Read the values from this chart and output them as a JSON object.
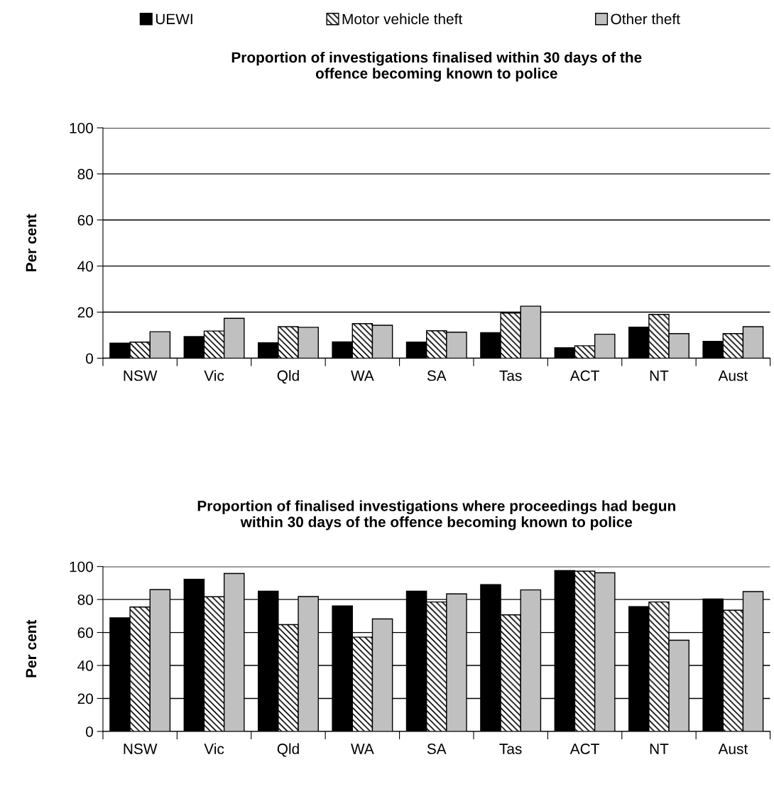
{
  "chart_data": [
    {
      "type": "bar",
      "title": "Proportion of investigations finalised within 30 days of the\noffence becoming known to police",
      "ylabel": "Per cent",
      "categories": [
        "NSW",
        "Vic",
        "Qld",
        "WA",
        "SA",
        "Tas",
        "ACT",
        "NT",
        "Aust"
      ],
      "series": [
        {
          "name": "UEWI",
          "color": "#000000",
          "values": [
            6.5,
            9.4,
            6.7,
            7.1,
            7.0,
            11.1,
            4.5,
            13.5,
            7.3
          ]
        },
        {
          "name": "Motor vehicle theft",
          "color": "#000000",
          "values": [
            7.0,
            11.8,
            13.7,
            15.0,
            11.9,
            19.6,
            5.4,
            19.0,
            10.7
          ]
        },
        {
          "name": "Other theft",
          "color": "#c0c0c0",
          "values": [
            11.5,
            17.3,
            13.4,
            14.3,
            11.3,
            22.6,
            10.4,
            10.7,
            13.7
          ]
        }
      ],
      "ylim": [
        0,
        100
      ],
      "yticks": [
        0,
        20,
        40,
        60,
        80,
        100
      ],
      "grid": "y",
      "legend": "top"
    },
    {
      "type": "bar",
      "title": "Proportion of finalised investigations where proceedings had begun\nwithin 30 days of the offence becoming known to police",
      "ylabel": "Per cent",
      "categories": [
        "NSW",
        "Vic",
        "Qld",
        "WA",
        "SA",
        "Tas",
        "ACT",
        "NT",
        "Aust"
      ],
      "series": [
        {
          "color": "#000000",
          "values": [
            68.9,
            92.3,
            85.0,
            76.1,
            85.0,
            89.0,
            97.5,
            75.7,
            80.3
          ]
        },
        {
          "color": "#000000",
          "values": [
            75.4,
            81.7,
            64.8,
            57.2,
            78.5,
            70.7,
            97.2,
            78.5,
            73.5
          ]
        },
        {
          "color": "#c0c0c0",
          "values": [
            86.0,
            95.8,
            81.8,
            68.2,
            83.4,
            85.8,
            96.2,
            55.3,
            84.8
          ]
        }
      ],
      "ylim": [
        0,
        100
      ],
      "yticks": [
        0,
        20,
        40,
        60,
        80,
        100
      ],
      "grid": "y"
    }
  ]
}
